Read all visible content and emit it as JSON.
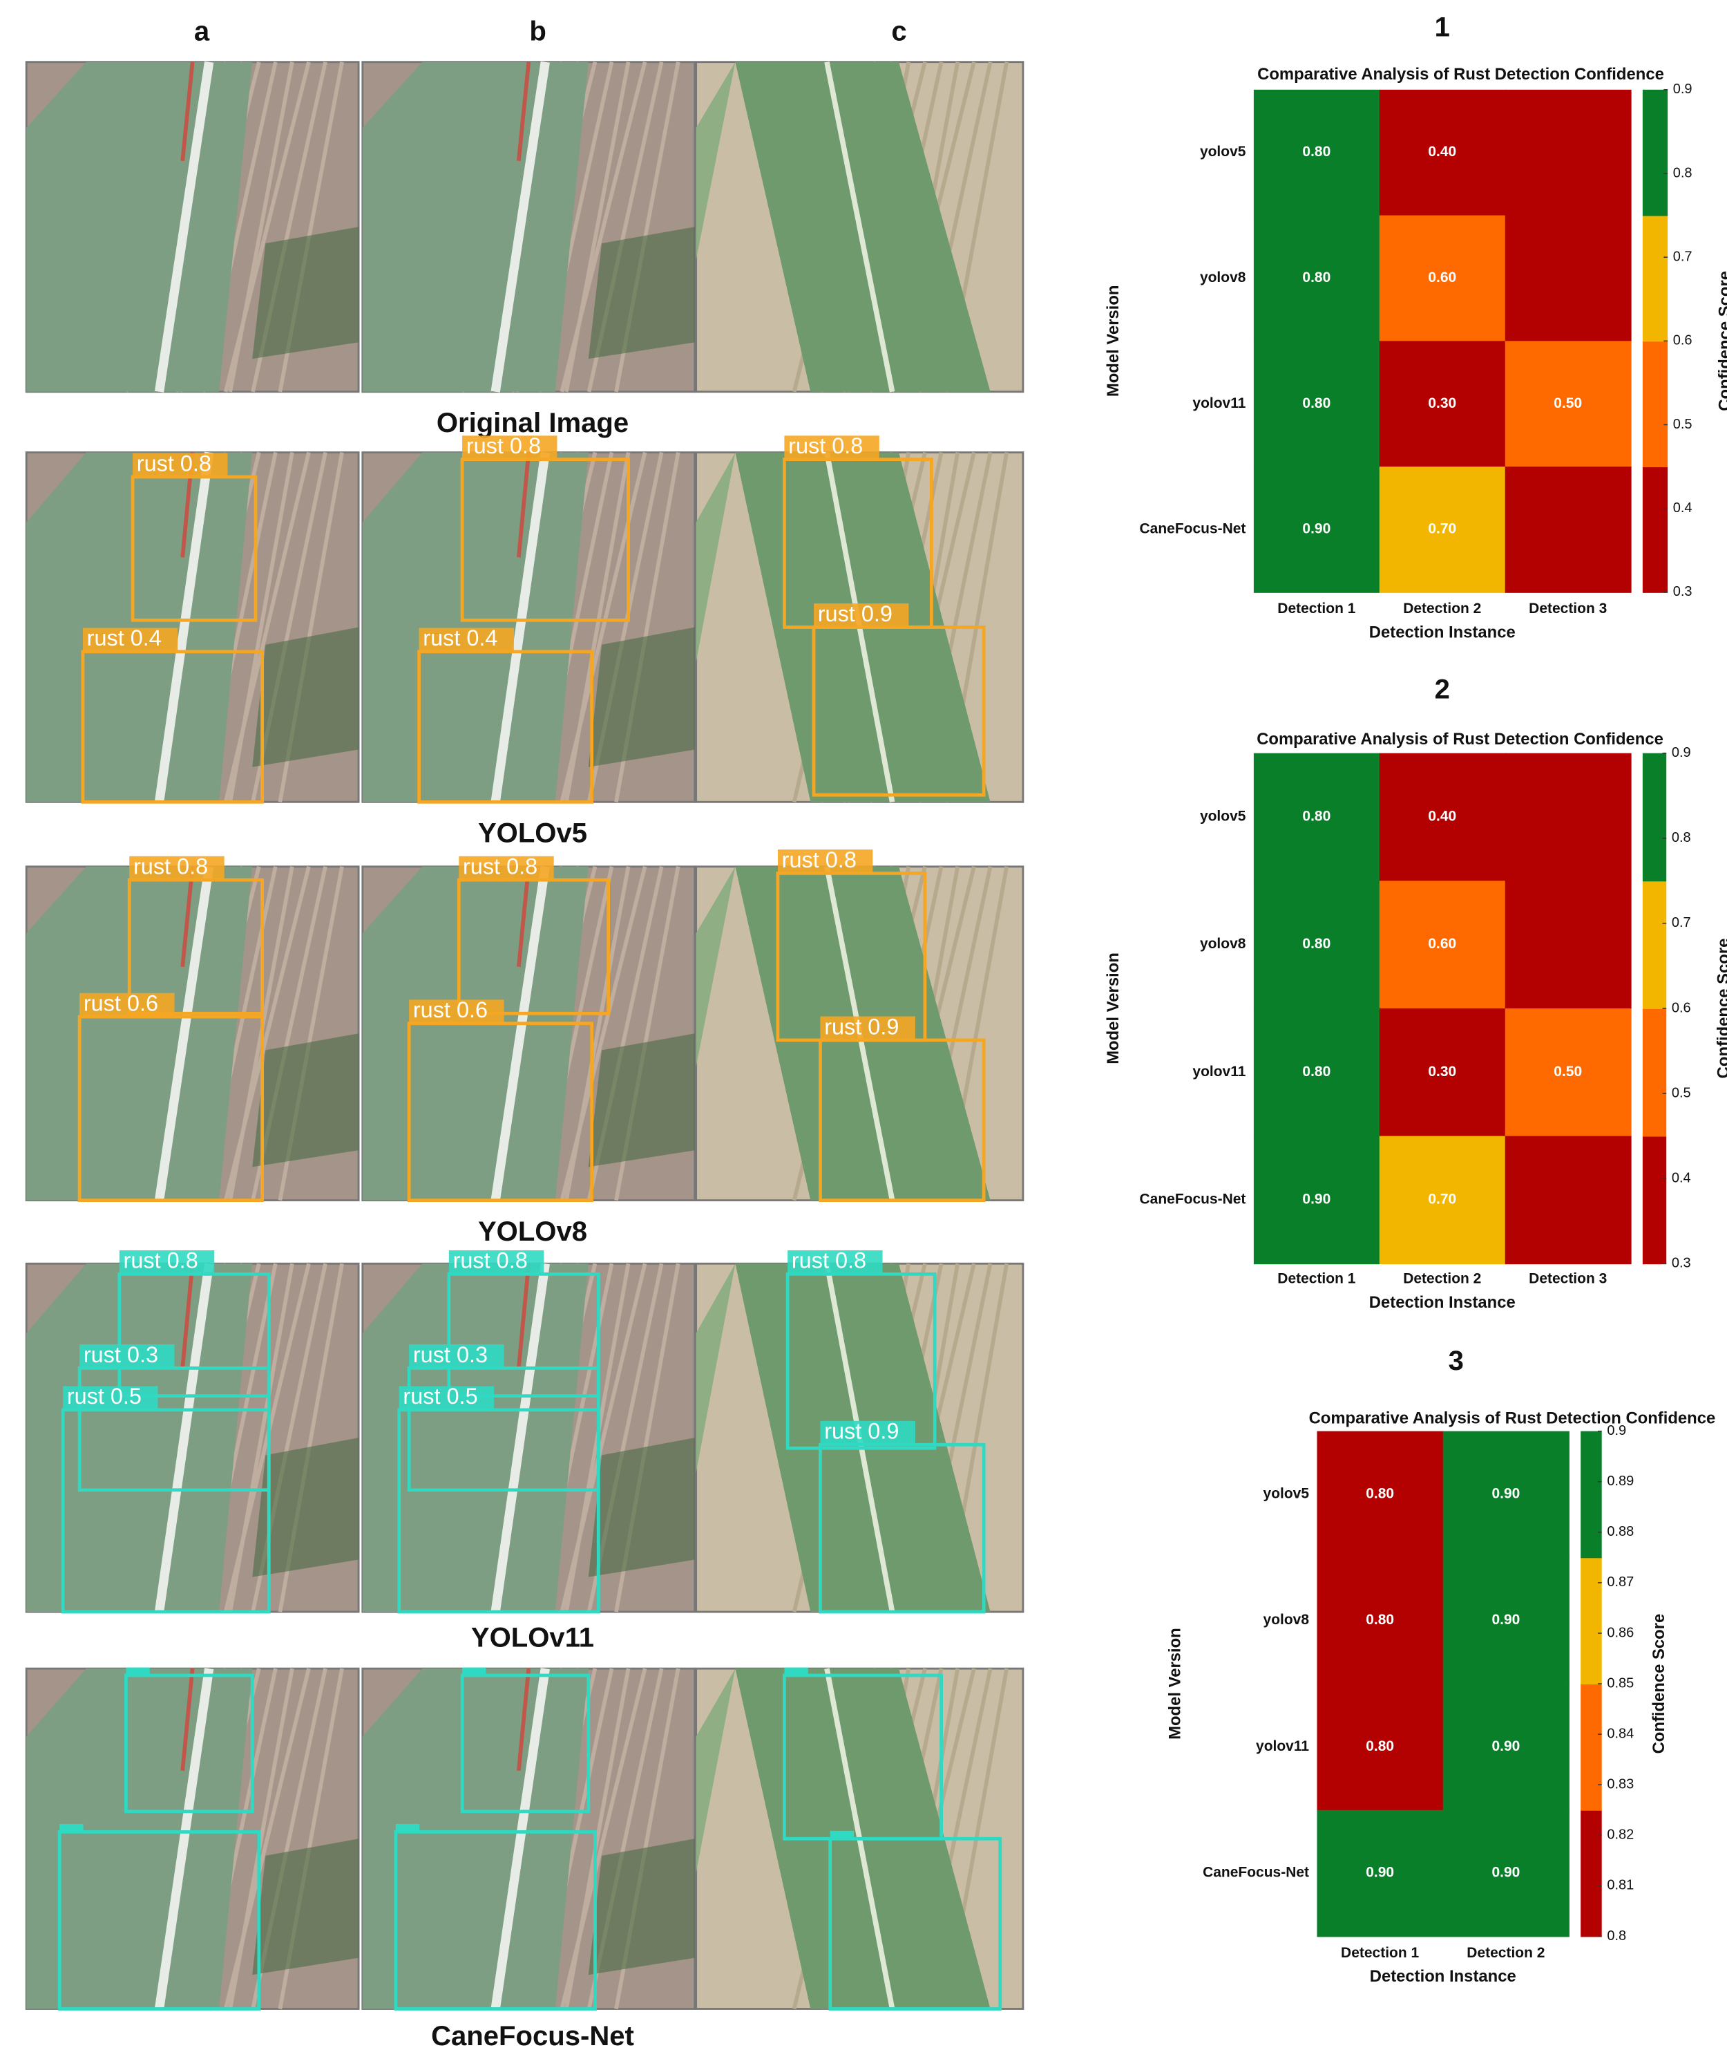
{
  "figure": {
    "columns": [
      "a",
      "b",
      "c"
    ],
    "rows": [
      {
        "label": "Original Image"
      },
      {
        "label": "YOLOv5",
        "detections": [
          [
            "rust 0.8",
            "rust 0.4"
          ],
          [
            "rust 0.8",
            "rust 0.4"
          ],
          [
            "rust 0.8",
            "rust 0.9"
          ]
        ]
      },
      {
        "label": "YOLOv8",
        "detections": [
          [
            "rust 0.8",
            "rust 0.6"
          ],
          [
            "rust 0.8",
            "rust 0.6"
          ],
          [
            "rust 0.8",
            "rust 0.9"
          ]
        ]
      },
      {
        "label": "YOLOv11",
        "detections": [
          [
            "rust 0.8",
            "rust 0.3",
            "rust 0.5"
          ],
          [
            "rust 0.8",
            "rust 0.3",
            "rust 0.5"
          ],
          [
            "rust 0.8",
            "rust 0.9"
          ]
        ]
      },
      {
        "label": "CaneFocus-Net"
      }
    ]
  },
  "chart_data": [
    {
      "type": "heatmap",
      "panel": "1",
      "title": "Comparative Analysis of Rust Detection Confidence",
      "x_label": "Detection Instance",
      "y_label": "Model Version",
      "colorbar_label": "Confidence Score",
      "categories": [
        "Detection 1",
        "Detection 2",
        "Detection 3"
      ],
      "rows": [
        "yolov5",
        "yolov8",
        "yolov11",
        "CaneFocus-Net"
      ],
      "values": [
        [
          0.8,
          0.4,
          null
        ],
        [
          0.8,
          0.6,
          null
        ],
        [
          0.8,
          0.3,
          0.5
        ],
        [
          0.9,
          0.7,
          null
        ]
      ],
      "value_labels": [
        [
          "0.80",
          "0.40",
          null
        ],
        [
          "0.80",
          "0.60",
          null
        ],
        [
          "0.80",
          "0.30",
          "0.50"
        ],
        [
          "0.90",
          "0.70",
          null
        ]
      ],
      "clim": [
        0.3,
        0.9
      ],
      "cticks": [
        0.3,
        0.4,
        0.5,
        0.6,
        0.7,
        0.8,
        0.9
      ],
      "colors": [
        "#b30000",
        "#ff6a00",
        "#f2b600",
        "#0a7f2a"
      ]
    },
    {
      "type": "heatmap",
      "panel": "2",
      "title": "Comparative Analysis of Rust Detection Confidence",
      "x_label": "Detection Instance",
      "y_label": "Model Version",
      "colorbar_label": "Confidence Score",
      "categories": [
        "Detection 1",
        "Detection 2",
        "Detection 3"
      ],
      "rows": [
        "yolov5",
        "yolov8",
        "yolov11",
        "CaneFocus-Net"
      ],
      "values": [
        [
          0.8,
          0.4,
          null
        ],
        [
          0.8,
          0.6,
          null
        ],
        [
          0.8,
          0.3,
          0.5
        ],
        [
          0.9,
          0.7,
          null
        ]
      ],
      "value_labels": [
        [
          "0.80",
          "0.40",
          null
        ],
        [
          "0.80",
          "0.60",
          null
        ],
        [
          "0.80",
          "0.30",
          "0.50"
        ],
        [
          "0.90",
          "0.70",
          null
        ]
      ],
      "clim": [
        0.3,
        0.9
      ],
      "cticks": [
        0.3,
        0.4,
        0.5,
        0.6,
        0.7,
        0.8,
        0.9
      ],
      "colors": [
        "#b30000",
        "#ff6a00",
        "#f2b600",
        "#0a7f2a"
      ]
    },
    {
      "type": "heatmap",
      "panel": "3",
      "title": "Comparative Analysis of Rust Detection Confidence",
      "x_label": "Detection Instance",
      "y_label": "Model Version",
      "colorbar_label": "Confidence Score",
      "categories": [
        "Detection 1",
        "Detection 2"
      ],
      "rows": [
        "yolov5",
        "yolov8",
        "yolov11",
        "CaneFocus-Net"
      ],
      "values": [
        [
          0.8,
          0.9
        ],
        [
          0.8,
          0.9
        ],
        [
          0.8,
          0.9
        ],
        [
          0.9,
          0.9
        ]
      ],
      "value_labels": [
        [
          "0.80",
          "0.90"
        ],
        [
          "0.80",
          "0.90"
        ],
        [
          "0.80",
          "0.90"
        ],
        [
          "0.90",
          "0.90"
        ]
      ],
      "clim": [
        0.8,
        0.9
      ],
      "cticks": [
        0.8,
        0.81,
        0.82,
        0.83,
        0.84,
        0.85,
        0.86,
        0.87,
        0.88,
        0.89,
        0.9
      ],
      "colors": [
        "#b30000",
        "#ff6a00",
        "#f2b600",
        "#0a7f2a"
      ]
    }
  ]
}
